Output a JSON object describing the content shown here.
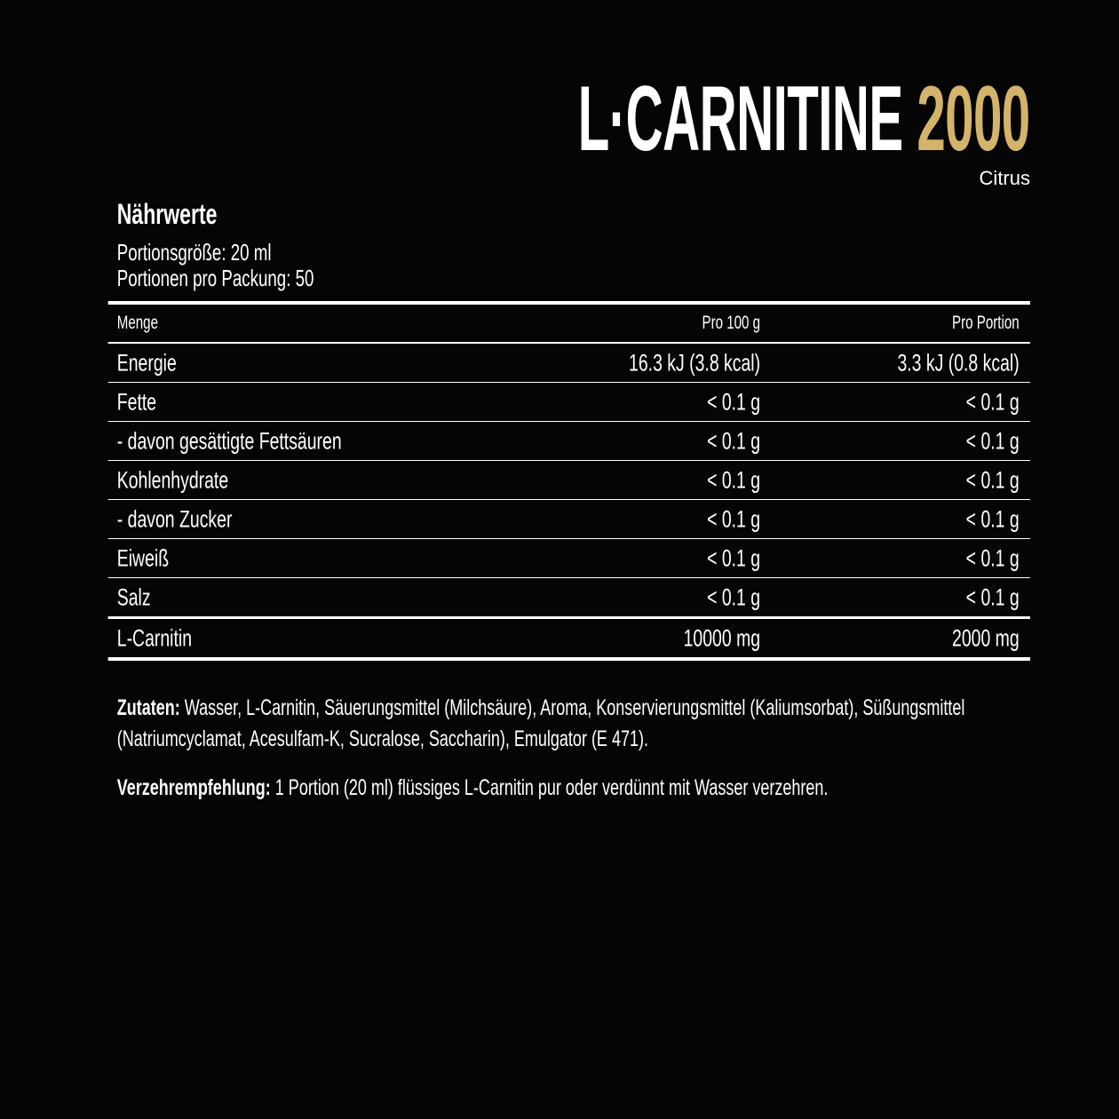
{
  "product": {
    "title_main": "L·CARNITINE",
    "title_accent": "2000",
    "flavor": "Citrus",
    "accent_color": "#d4b36a"
  },
  "nutrition": {
    "heading": "Nährwerte",
    "serving_size": "Portionsgröße: 20 ml",
    "servings_per_pack": "Portionen pro Packung: 50",
    "columns": [
      "Menge",
      "Pro 100 g",
      "Pro Portion"
    ],
    "rows": [
      [
        "Energie",
        "16.3 kJ (3.8 kcal)",
        "3.3 kJ (0.8 kcal)"
      ],
      [
        "Fette",
        "< 0.1 g",
        "< 0.1 g"
      ],
      [
        "- davon gesättigte Fettsäuren",
        "< 0.1 g",
        "< 0.1 g"
      ],
      [
        "Kohlenhydrate",
        "< 0.1 g",
        "< 0.1 g"
      ],
      [
        "- davon Zucker",
        "< 0.1 g",
        "< 0.1 g"
      ],
      [
        "Eiweiß",
        "< 0.1 g",
        "< 0.1 g"
      ],
      [
        "Salz",
        "< 0.1 g",
        "< 0.1 g"
      ],
      [
        "L-Carnitin",
        "10000 mg",
        "2000 mg"
      ]
    ]
  },
  "ingredients": {
    "label": "Zutaten:",
    "text": " Wasser, L-Carnitin, Säuerungsmittel (Milchsäure), Aroma, Konservierungsmittel (Kaliumsorbat), Süßungsmittel (Natriumcyclamat, Acesulfam-K, Sucralose, Saccharin), Emulgator (E 471)."
  },
  "usage": {
    "label": "Verzehrempfehlung:",
    "text": " 1 Portion (20 ml) flüssiges L-Carnitin pur oder verdünnt mit Wasser verzehren."
  }
}
